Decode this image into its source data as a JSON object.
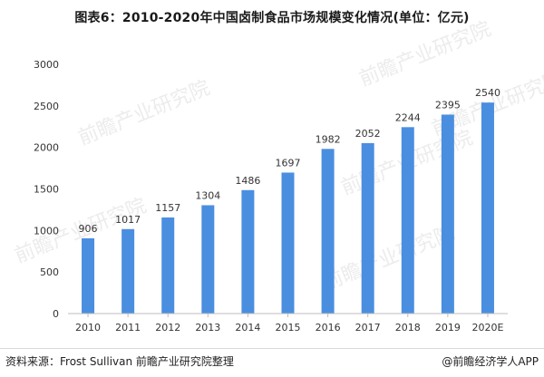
{
  "title": "图表6：2010-2020年中国卤制食品市场规模变化情况(单位：亿元)",
  "source": "资料来源：Frost Sullivan 前瞻产业研究院整理",
  "credit": "@前瞻经济学人APP",
  "watermark": "前瞻产业研究院",
  "colors": {
    "bar": "#4a8ee0",
    "grid": "#e3e3e3",
    "axis": "#bdbdbd",
    "text": "#333333"
  },
  "chart_data": {
    "type": "bar",
    "title": "图表6：2010-2020年中国卤制食品市场规模变化情况(单位：亿元)",
    "xlabel": "",
    "ylabel": "",
    "categories": [
      "2010",
      "2011",
      "2012",
      "2013",
      "2014",
      "2015",
      "2016",
      "2017",
      "2018",
      "2019",
      "2020E"
    ],
    "values": [
      906,
      1017,
      1157,
      1304,
      1486,
      1697,
      1982,
      2052,
      2244,
      2395,
      2540
    ],
    "ylim": [
      0,
      3000
    ],
    "yticks": [
      0,
      500,
      1000,
      1500,
      2000,
      2500,
      3000
    ],
    "grid": false,
    "legend": "none",
    "data_labels": true
  }
}
